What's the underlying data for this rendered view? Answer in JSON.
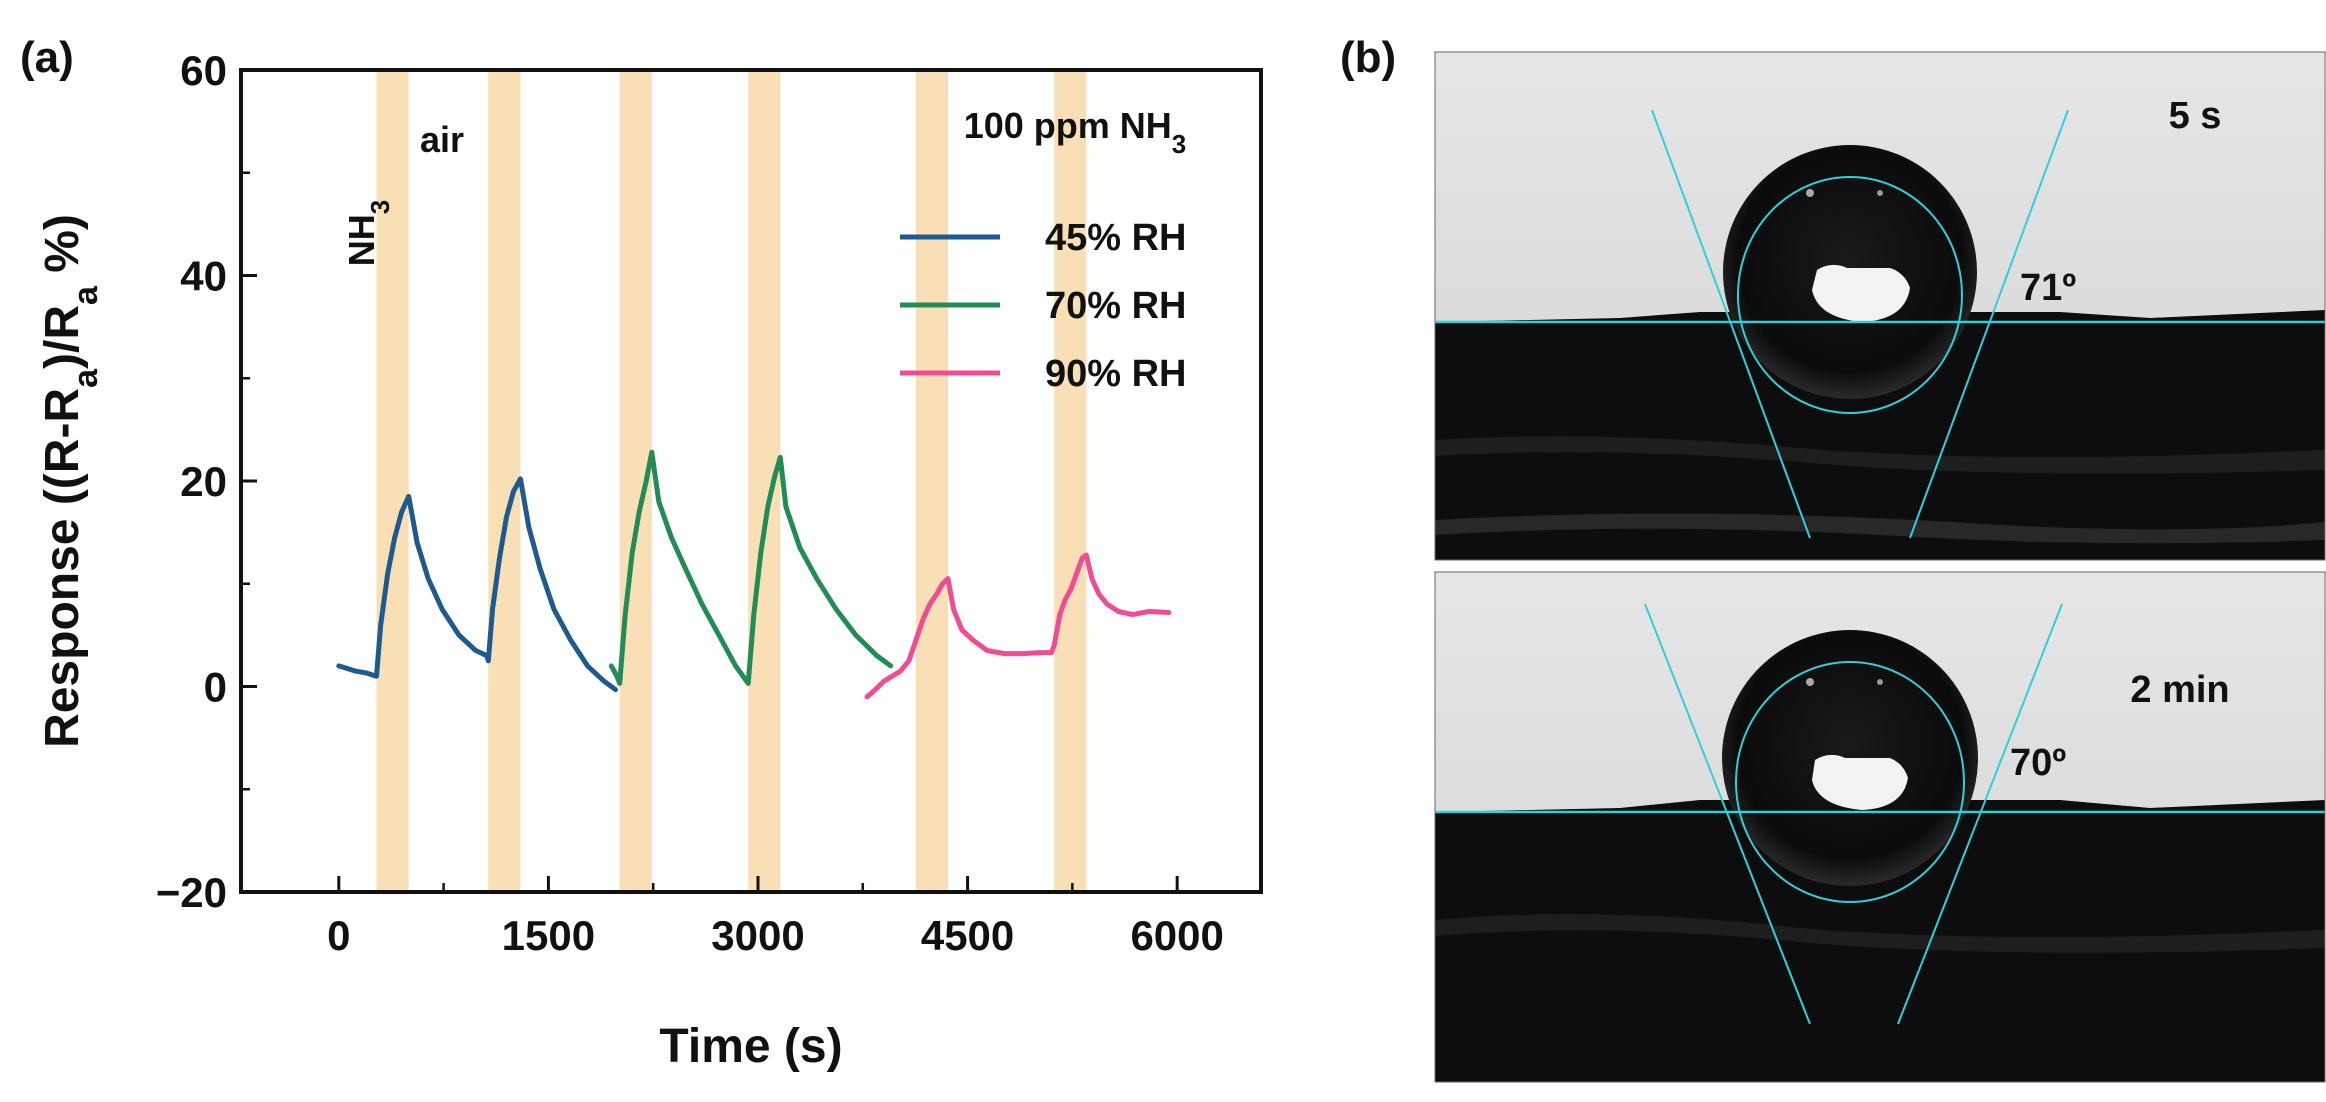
{
  "panel_a": {
    "label": "(a)",
    "annotations": {
      "gas_label": "100 ppm NH",
      "gas_sub": "3",
      "nh3_label": "NH",
      "nh3_sub": "3",
      "air_label": "air"
    },
    "chart_data": {
      "type": "line",
      "xlabel": "Time (s)",
      "ylabel_parts": [
        "Response ((R-R",
        "a",
        ")/R",
        "a",
        " %)"
      ],
      "xlim": [
        -700,
        6600
      ],
      "ylim": [
        -20,
        60
      ],
      "xticks": [
        0,
        1500,
        3000,
        4500,
        6000
      ],
      "yticks": [
        -20,
        0,
        20,
        40,
        60
      ],
      "ytick_labels": [
        "−20",
        "0",
        "20",
        "40",
        "60"
      ],
      "nh3_exposure_windows": [
        [
          270,
          500
        ],
        [
          1070,
          1300
        ],
        [
          2010,
          2240
        ],
        [
          2930,
          3160
        ],
        [
          4130,
          4360
        ],
        [
          5120,
          5350
        ]
      ],
      "exposure_color": "#f9dfb5",
      "legend": {
        "position": "top-right"
      },
      "series": [
        {
          "name": "45% RH",
          "color": "#1f5a8e",
          "x": [
            0,
            120,
            200,
            270,
            300,
            350,
            400,
            450,
            500,
            560,
            640,
            740,
            860,
            980,
            1060,
            1070,
            1100,
            1150,
            1200,
            1250,
            1300,
            1360,
            1440,
            1540,
            1660,
            1780,
            1900,
            1980
          ],
          "y": [
            2,
            1.5,
            1.3,
            1.0,
            6,
            11,
            14.5,
            17,
            18.5,
            14,
            10.5,
            7.5,
            5,
            3.5,
            3,
            2.5,
            7.5,
            12.5,
            16.5,
            19,
            20.2,
            15.5,
            11.5,
            7.5,
            4.5,
            2,
            0.5,
            -0.3
          ]
        },
        {
          "name": "70% RH",
          "color": "#238b55",
          "x": [
            1950,
            1990,
            2010,
            2050,
            2100,
            2150,
            2200,
            2240,
            2290,
            2380,
            2480,
            2600,
            2720,
            2840,
            2920,
            2930,
            2970,
            3020,
            3070,
            3120,
            3160,
            3200,
            3300,
            3420,
            3560,
            3700,
            3850,
            3950
          ],
          "y": [
            2,
            1.0,
            0.3,
            7,
            13,
            17,
            20,
            22.8,
            18,
            14.5,
            11.5,
            8,
            5,
            2,
            0.5,
            0.3,
            7,
            13,
            17.5,
            20.5,
            22.3,
            17.5,
            13.5,
            10.5,
            7.5,
            5,
            3,
            2
          ]
        },
        {
          "name": "90% RH",
          "color": "#ef4c93",
          "x": [
            3780,
            3840,
            3900,
            3960,
            4020,
            4080,
            4130,
            4180,
            4230,
            4280,
            4320,
            4360,
            4400,
            4460,
            4540,
            4640,
            4760,
            4900,
            5020,
            5100,
            5120,
            5160,
            5200,
            5240,
            5280,
            5320,
            5350,
            5390,
            5440,
            5500,
            5580,
            5680,
            5800,
            5940
          ],
          "y": [
            -1,
            -0.3,
            0.5,
            1.0,
            1.5,
            2.5,
            4.5,
            6.5,
            8,
            9,
            10,
            10.5,
            7.5,
            5.5,
            4.5,
            3.5,
            3.2,
            3.2,
            3.3,
            3.3,
            4,
            7,
            8.5,
            9.5,
            11,
            12.5,
            12.8,
            10.5,
            9,
            8,
            7.3,
            7,
            7.3,
            7.2
          ]
        }
      ]
    }
  },
  "panel_b": {
    "label": "(b)",
    "photos": [
      {
        "time_label": "5 s",
        "angle_label": "71º"
      },
      {
        "time_label": "2 min",
        "angle_label": "70º"
      }
    ],
    "fit_line_color": "#2fd0dc"
  }
}
